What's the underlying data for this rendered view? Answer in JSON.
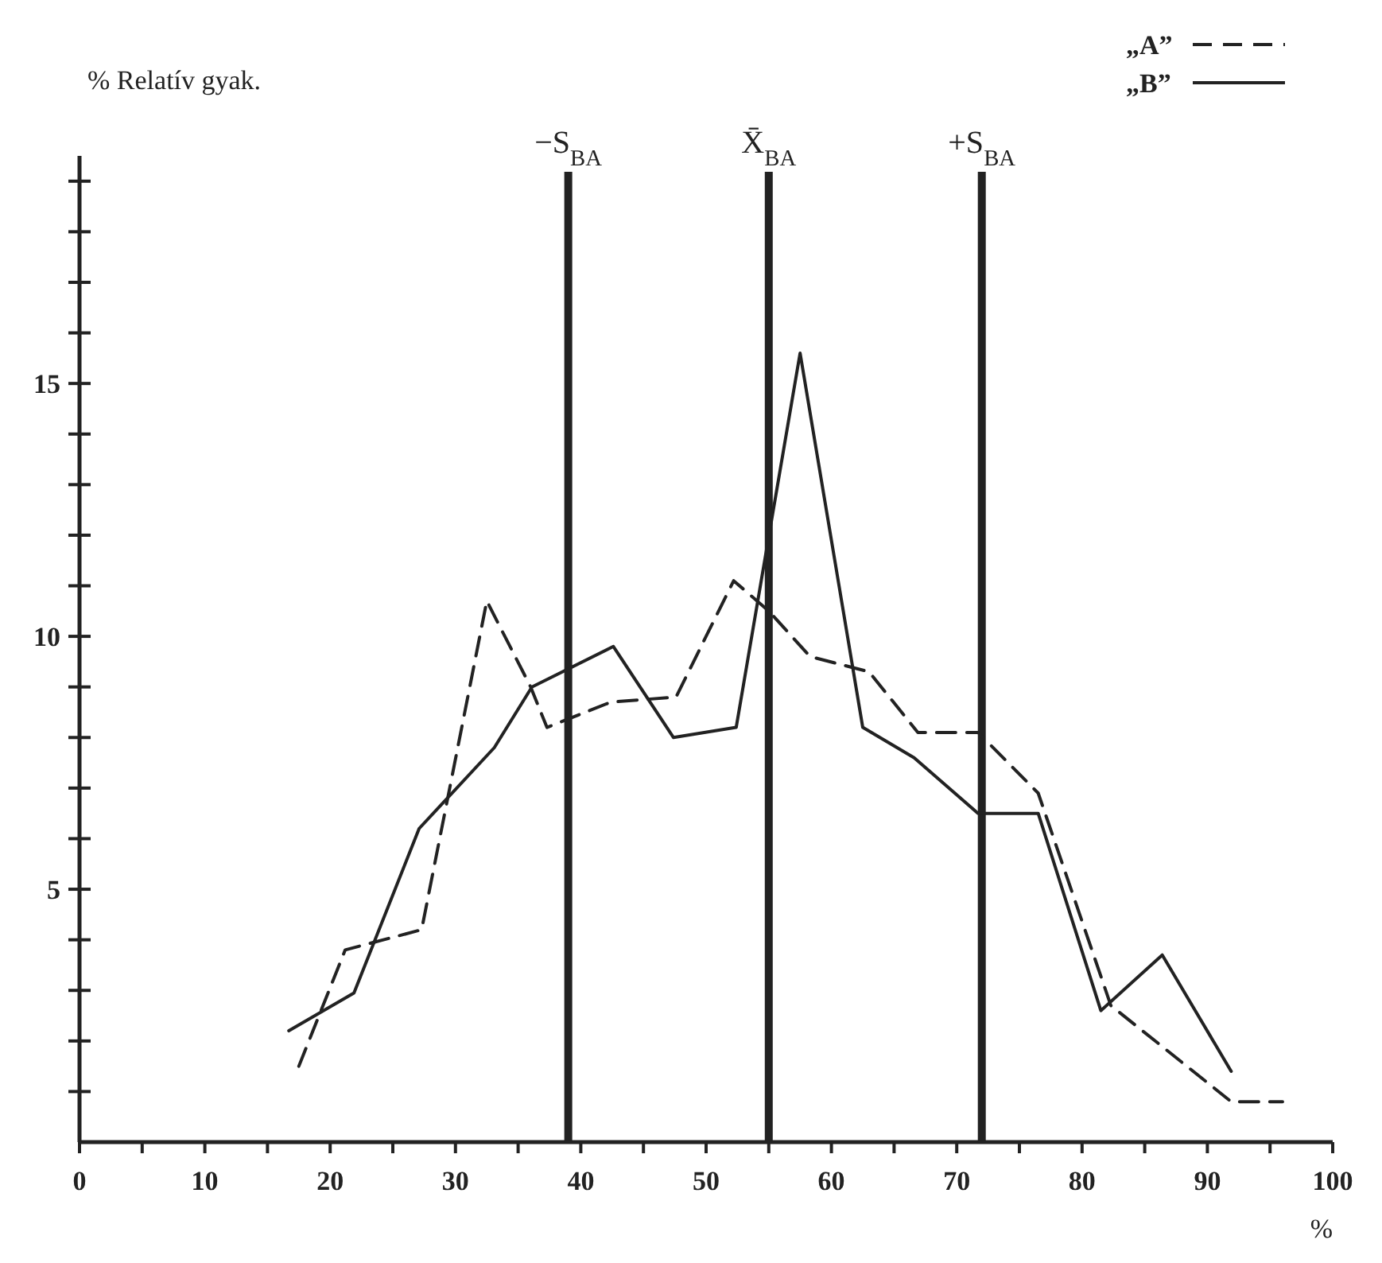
{
  "chart_data": {
    "type": "line",
    "ylabel": "% Relatív gyak.",
    "xlabel": "%",
    "xlim": [
      0,
      100
    ],
    "ylim": [
      0,
      19.5
    ],
    "xticks": [
      0,
      {
        "value": 5,
        "label": null
      },
      10,
      {
        "value": 15,
        "label": null
      },
      20,
      {
        "value": 25,
        "label": null
      },
      30,
      {
        "value": 35,
        "label": null
      },
      40,
      {
        "value": 45,
        "label": null
      },
      50,
      {
        "value": 55,
        "label": null
      },
      60,
      {
        "value": 65,
        "label": null
      },
      70,
      {
        "value": 75,
        "label": null
      },
      80,
      {
        "value": 85,
        "label": null
      },
      90,
      {
        "value": 95,
        "label": null
      },
      100
    ],
    "yticks": [
      {
        "value": 1,
        "label": null
      },
      {
        "value": 2,
        "label": null
      },
      {
        "value": 3,
        "label": null
      },
      {
        "value": 4,
        "label": null
      },
      5,
      {
        "value": 6,
        "label": null
      },
      {
        "value": 7,
        "label": null
      },
      {
        "value": 8,
        "label": null
      },
      {
        "value": 9,
        "label": null
      },
      10,
      {
        "value": 11,
        "label": null
      },
      {
        "value": 12,
        "label": null
      },
      {
        "value": 13,
        "label": null
      },
      {
        "value": 14,
        "label": null
      },
      15,
      {
        "value": 16,
        "label": null
      },
      {
        "value": 17,
        "label": null
      },
      {
        "value": 18,
        "label": null
      },
      {
        "value": 19,
        "label": null
      }
    ],
    "grid": false,
    "legend": "top right",
    "series": [
      {
        "name": "„A”",
        "color": "#222222",
        "line_style": "dashed",
        "x": [
          17.5,
          21.2,
          27.3,
          32.5,
          36.0,
          37.3,
          42.4,
          47.6,
          52.2,
          55.0,
          58.3,
          63.0,
          66.9,
          71.7,
          76.5,
          82.3,
          91.9,
          96.0
        ],
        "values": [
          1.5,
          3.8,
          4.2,
          10.7,
          9.0,
          8.2,
          8.7,
          8.8,
          11.1,
          10.5,
          9.6,
          9.3,
          8.1,
          8.1,
          6.9,
          2.7,
          0.8,
          0.8
        ]
      },
      {
        "name": "„B”",
        "color": "#222222",
        "line_style": "solid",
        "x": [
          16.7,
          21.9,
          27.1,
          33.1,
          36.1,
          42.6,
          47.4,
          52.4,
          57.5,
          62.5,
          66.6,
          71.7,
          76.5,
          81.5,
          86.4,
          91.9
        ],
        "values": [
          2.2,
          2.95,
          6.2,
          7.8,
          9.0,
          9.8,
          8.0,
          8.2,
          15.6,
          8.2,
          7.6,
          6.5,
          6.5,
          2.6,
          3.7,
          1.4
        ]
      }
    ],
    "ref_lines": [
      {
        "axis": "x",
        "value": 39,
        "label": "−S$_{BA}$"
      },
      {
        "axis": "x",
        "value": 55,
        "label": "X̄$_{BA}$"
      },
      {
        "axis": "x",
        "value": 72,
        "label": "+S$_{BA}$"
      }
    ]
  }
}
